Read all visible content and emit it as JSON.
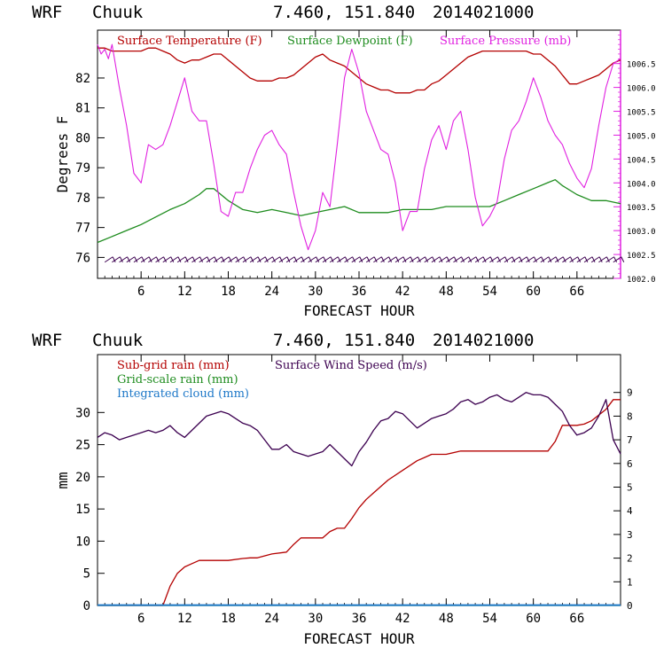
{
  "colors": {
    "temperature": "#b40000",
    "dewpoint": "#1e8c1e",
    "pressure": "#e020e0",
    "subgrid_rain": "#b40000",
    "gridscale_rain": "#1e8c1e",
    "cloud": "#1e78c8",
    "wind": "#3c0050",
    "wind_barbs": "#3c0050"
  },
  "chart_data": [
    {
      "type": "line",
      "header": {
        "model": "WRF",
        "station": "Chuuk",
        "coords": "7.460, 151.840",
        "date": "2014021000"
      },
      "xlabel": "FORECAST HOUR",
      "ylabel": "Degrees F",
      "xlim": [
        0,
        72
      ],
      "ylim": [
        75.3,
        83.6
      ],
      "y2lim": [
        1002.0,
        1007.2
      ],
      "x_ticks": [
        6,
        12,
        18,
        24,
        30,
        36,
        42,
        48,
        54,
        60,
        66
      ],
      "x_tick_labels": [
        "6",
        "12",
        "18",
        "24",
        "30",
        "36",
        "42",
        "48",
        "54",
        "60",
        "66"
      ],
      "y_ticks": [
        76,
        77,
        78,
        79,
        80,
        81,
        82
      ],
      "y_tick_labels": [
        "76",
        "77",
        "78",
        "79",
        "80",
        "81",
        "82"
      ],
      "y2_ticks": [
        1002.0,
        1002.5,
        1003.0,
        1003.5,
        1004.0,
        1004.5,
        1005.0,
        1005.5,
        1006.0,
        1006.5
      ],
      "y2_tick_labels": [
        "1002.0",
        "1002.5",
        "1003.0",
        "1003.5",
        "1004.0",
        "1004.5",
        "1005.0",
        "1005.5",
        "1006.0",
        "1006.5"
      ],
      "legend": [
        "Surface Temperature (F)",
        "Surface Dewpoint (F)",
        "Surface Pressure (mb)"
      ],
      "wind_barbs_y": 75.9,
      "series": [
        {
          "name": "Surface Temperature (F)",
          "axis": "left",
          "x": [
            0,
            1,
            2,
            3,
            4,
            5,
            6,
            7,
            8,
            9,
            10,
            11,
            12,
            13,
            14,
            15,
            16,
            17,
            18,
            19,
            20,
            21,
            22,
            23,
            24,
            25,
            26,
            27,
            28,
            29,
            30,
            31,
            32,
            33,
            34,
            35,
            36,
            37,
            38,
            39,
            40,
            41,
            42,
            43,
            44,
            45,
            46,
            47,
            48,
            49,
            50,
            51,
            52,
            53,
            54,
            55,
            56,
            57,
            58,
            59,
            60,
            61,
            62,
            63,
            64,
            65,
            66,
            67,
            68,
            69,
            70,
            71,
            72
          ],
          "values": [
            83.0,
            83.0,
            82.9,
            82.9,
            82.9,
            82.9,
            82.9,
            83.0,
            83.0,
            82.9,
            82.8,
            82.6,
            82.5,
            82.6,
            82.6,
            82.7,
            82.8,
            82.8,
            82.6,
            82.4,
            82.2,
            82.0,
            81.9,
            81.9,
            81.9,
            82.0,
            82.0,
            82.1,
            82.3,
            82.5,
            82.7,
            82.8,
            82.6,
            82.5,
            82.4,
            82.2,
            82.0,
            81.8,
            81.7,
            81.6,
            81.6,
            81.5,
            81.5,
            81.5,
            81.6,
            81.6,
            81.8,
            81.9,
            82.1,
            82.3,
            82.5,
            82.7,
            82.8,
            82.9,
            82.9,
            82.9,
            82.9,
            82.9,
            82.9,
            82.9,
            82.8,
            82.8,
            82.6,
            82.4,
            82.1,
            81.8,
            81.8,
            81.9,
            82.0,
            82.1,
            82.3,
            82.5,
            82.6
          ]
        },
        {
          "name": "Surface Dewpoint (F)",
          "axis": "left",
          "x": [
            0,
            2,
            4,
            6,
            8,
            10,
            12,
            14,
            15,
            16,
            18,
            20,
            22,
            24,
            26,
            28,
            30,
            32,
            34,
            36,
            38,
            40,
            42,
            44,
            46,
            48,
            50,
            52,
            54,
            56,
            58,
            60,
            62,
            63,
            64,
            66,
            68,
            70,
            72
          ],
          "values": [
            76.5,
            76.7,
            76.9,
            77.1,
            77.35,
            77.6,
            77.8,
            78.1,
            78.3,
            78.3,
            77.9,
            77.6,
            77.5,
            77.6,
            77.5,
            77.4,
            77.5,
            77.6,
            77.7,
            77.5,
            77.5,
            77.5,
            77.6,
            77.6,
            77.6,
            77.7,
            77.7,
            77.7,
            77.7,
            77.9,
            78.1,
            78.3,
            78.5,
            78.6,
            78.4,
            78.1,
            77.9,
            77.9,
            77.8
          ]
        },
        {
          "name": "Surface Pressure (mb)",
          "axis": "right",
          "x": [
            0,
            0.5,
            1,
            1.5,
            2,
            3,
            4,
            5,
            6,
            7,
            8,
            9,
            10,
            11,
            12,
            13,
            14,
            15,
            16,
            17,
            18,
            19,
            20,
            21,
            22,
            23,
            24,
            25,
            26,
            27,
            28,
            29,
            30,
            31,
            32,
            33,
            34,
            35,
            36,
            37,
            38,
            39,
            40,
            41,
            42,
            43,
            44,
            45,
            46,
            47,
            48,
            49,
            50,
            51,
            52,
            53,
            54,
            55,
            56,
            57,
            58,
            59,
            60,
            61,
            62,
            63,
            64,
            65,
            66,
            67,
            68,
            69,
            70,
            71,
            72
          ],
          "values": [
            1006.9,
            1006.7,
            1006.8,
            1006.6,
            1006.9,
            1006.0,
            1005.2,
            1004.2,
            1004.0,
            1004.8,
            1004.7,
            1004.8,
            1005.2,
            1005.7,
            1006.2,
            1005.5,
            1005.3,
            1005.3,
            1004.4,
            1003.4,
            1003.3,
            1003.8,
            1003.8,
            1004.3,
            1004.7,
            1005.0,
            1005.1,
            1004.8,
            1004.6,
            1003.8,
            1003.1,
            1002.6,
            1003.0,
            1003.8,
            1003.5,
            1004.8,
            1006.2,
            1006.8,
            1006.3,
            1005.5,
            1005.1,
            1004.7,
            1004.6,
            1004.0,
            1003.0,
            1003.4,
            1003.4,
            1004.3,
            1004.9,
            1005.2,
            1004.7,
            1005.3,
            1005.5,
            1004.7,
            1003.7,
            1003.1,
            1003.3,
            1003.6,
            1004.5,
            1005.1,
            1005.3,
            1005.7,
            1006.2,
            1005.8,
            1005.3,
            1005.0,
            1004.8,
            1004.4,
            1004.1,
            1003.9,
            1004.3,
            1005.2,
            1006.0,
            1006.5,
            1006.6
          ]
        }
      ]
    },
    {
      "type": "line",
      "header": {
        "model": "WRF",
        "station": "Chuuk",
        "coords": "7.460, 151.840",
        "date": "2014021000"
      },
      "xlabel": "FORECAST HOUR",
      "ylabel": "mm",
      "xlim": [
        0,
        72
      ],
      "ylim": [
        0,
        39
      ],
      "y2lim": [
        0,
        10.6
      ],
      "x_ticks": [
        6,
        12,
        18,
        24,
        30,
        36,
        42,
        48,
        54,
        60,
        66
      ],
      "x_tick_labels": [
        "6",
        "12",
        "18",
        "24",
        "30",
        "36",
        "42",
        "48",
        "54",
        "60",
        "66"
      ],
      "y_ticks": [
        0,
        5,
        10,
        15,
        20,
        25,
        30
      ],
      "y_tick_labels": [
        "0",
        "5",
        "10",
        "15",
        "20",
        "25",
        "30"
      ],
      "y2_ticks": [
        0,
        1,
        2,
        3,
        4,
        5,
        6,
        7,
        8,
        9
      ],
      "y2_tick_labels": [
        "0",
        "1",
        "2",
        "3",
        "4",
        "5",
        "6",
        "7",
        "8",
        "9"
      ],
      "legend": [
        "Sub-grid rain (mm)",
        "Grid-scale rain (mm)",
        "Integrated cloud (mm)",
        "Surface Wind Speed (m/s)"
      ],
      "series": [
        {
          "name": "Sub-grid rain (mm)",
          "axis": "left",
          "x": [
            0,
            9,
            10,
            11,
            12,
            13,
            14,
            16,
            18,
            20,
            21,
            22,
            24,
            26,
            27,
            28,
            30,
            31,
            32,
            33,
            34,
            35,
            36,
            37,
            38,
            40,
            42,
            44,
            45,
            46,
            48,
            50,
            54,
            58,
            62,
            63,
            64,
            66,
            67,
            68,
            70,
            71,
            72
          ],
          "values": [
            0,
            0,
            3,
            5,
            6,
            6.5,
            7,
            7,
            7,
            7.3,
            7.4,
            7.4,
            8,
            8.3,
            9.5,
            10.5,
            10.5,
            10.5,
            11.5,
            12,
            12,
            13.5,
            15.2,
            16.5,
            17.5,
            19.5,
            21,
            22.5,
            23,
            23.5,
            23.5,
            24,
            24,
            24,
            24,
            25.5,
            28,
            28,
            28.2,
            28.7,
            30.5,
            32,
            32
          ]
        },
        {
          "name": "Grid-scale rain (mm)",
          "axis": "left",
          "x": [
            0,
            72
          ],
          "values": [
            0,
            0
          ]
        },
        {
          "name": "Integrated cloud (mm)",
          "axis": "left",
          "x": [
            0,
            72
          ],
          "values": [
            0.05,
            0.05
          ]
        },
        {
          "name": "Surface Wind Speed (m/s)",
          "axis": "right",
          "x": [
            0,
            1,
            2,
            3,
            4,
            5,
            6,
            7,
            8,
            9,
            10,
            11,
            12,
            13,
            14,
            15,
            16,
            17,
            18,
            19,
            20,
            21,
            22,
            23,
            24,
            25,
            26,
            27,
            28,
            29,
            30,
            31,
            32,
            33,
            34,
            35,
            36,
            37,
            38,
            39,
            40,
            41,
            42,
            43,
            44,
            45,
            46,
            47,
            48,
            49,
            50,
            51,
            52,
            53,
            54,
            55,
            56,
            57,
            58,
            59,
            60,
            61,
            62,
            63,
            64,
            65,
            66,
            67,
            68,
            69,
            70,
            71,
            72
          ],
          "values": [
            7.1,
            7.3,
            7.2,
            7.0,
            7.1,
            7.2,
            7.3,
            7.4,
            7.3,
            7.4,
            7.6,
            7.3,
            7.1,
            7.4,
            7.7,
            8.0,
            8.1,
            8.2,
            8.1,
            7.9,
            7.7,
            7.6,
            7.4,
            7.0,
            6.6,
            6.6,
            6.8,
            6.5,
            6.4,
            6.3,
            6.4,
            6.5,
            6.8,
            6.5,
            6.2,
            5.9,
            6.5,
            6.9,
            7.4,
            7.8,
            7.9,
            8.2,
            8.1,
            7.8,
            7.5,
            7.7,
            7.9,
            8.0,
            8.1,
            8.3,
            8.6,
            8.7,
            8.5,
            8.6,
            8.8,
            8.9,
            8.7,
            8.6,
            8.8,
            9.0,
            8.9,
            8.9,
            8.8,
            8.5,
            8.2,
            7.6,
            7.2,
            7.3,
            7.5,
            8.0,
            8.7,
            7.0,
            6.4
          ]
        }
      ]
    }
  ]
}
